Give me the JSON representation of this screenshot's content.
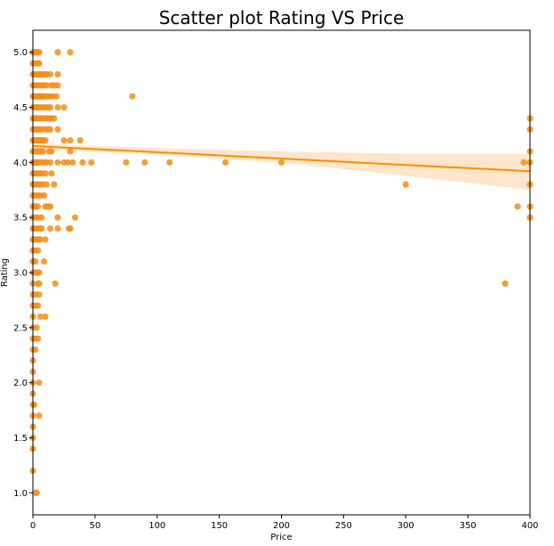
{
  "chart_data": {
    "type": "scatter",
    "title": "Scatter plot Rating VS Price",
    "xlabel": "Price",
    "ylabel": "Rating",
    "xlim": [
      0,
      400
    ],
    "ylim": [
      0.8,
      5.2
    ],
    "x_ticks": [
      0,
      50,
      100,
      150,
      200,
      250,
      300,
      350,
      400
    ],
    "y_ticks": [
      1.0,
      1.5,
      2.0,
      2.5,
      3.0,
      3.5,
      4.0,
      4.5,
      5.0
    ],
    "grid": false,
    "colors": {
      "points": "#f28e1c",
      "regression_line": "#ff8c00",
      "confidence_band": "#fde6cc"
    },
    "regression_line": {
      "x": [
        0,
        400
      ],
      "y": [
        4.15,
        3.92
      ]
    },
    "confidence_band": {
      "x": [
        0,
        50,
        100,
        200,
        300,
        400
      ],
      "lower": [
        4.12,
        4.1,
        4.07,
        4.0,
        3.88,
        3.75
      ],
      "upper": [
        4.17,
        4.15,
        4.13,
        4.1,
        4.08,
        4.08
      ]
    },
    "points": [
      [
        0,
        5.0
      ],
      [
        1,
        5.0
      ],
      [
        2,
        5.0
      ],
      [
        3,
        5.0
      ],
      [
        4,
        5.0
      ],
      [
        5,
        5.0
      ],
      [
        20,
        5.0
      ],
      [
        30,
        5.0
      ],
      [
        0,
        4.9
      ],
      [
        2,
        4.9
      ],
      [
        4,
        4.9
      ],
      [
        5,
        4.9
      ],
      [
        0,
        4.8
      ],
      [
        1,
        4.8
      ],
      [
        2,
        4.8
      ],
      [
        3,
        4.8
      ],
      [
        4,
        4.8
      ],
      [
        5,
        4.8
      ],
      [
        6,
        4.8
      ],
      [
        7,
        4.8
      ],
      [
        8,
        4.8
      ],
      [
        10,
        4.8
      ],
      [
        11,
        4.8
      ],
      [
        14,
        4.8
      ],
      [
        20,
        4.8
      ],
      [
        0,
        4.7
      ],
      [
        2,
        4.7
      ],
      [
        3,
        4.7
      ],
      [
        5,
        4.7
      ],
      [
        7,
        4.7
      ],
      [
        9,
        4.7
      ],
      [
        11,
        4.7
      ],
      [
        15,
        4.7
      ],
      [
        17,
        4.7
      ],
      [
        20,
        4.7
      ],
      [
        0,
        4.6
      ],
      [
        1,
        4.6
      ],
      [
        2,
        4.6
      ],
      [
        3,
        4.6
      ],
      [
        4,
        4.6
      ],
      [
        5,
        4.6
      ],
      [
        6,
        4.6
      ],
      [
        7,
        4.6
      ],
      [
        8,
        4.6
      ],
      [
        10,
        4.6
      ],
      [
        12,
        4.6
      ],
      [
        14,
        4.6
      ],
      [
        16,
        4.6
      ],
      [
        19,
        4.6
      ],
      [
        80,
        4.6
      ],
      [
        0,
        4.5
      ],
      [
        2,
        4.5
      ],
      [
        3,
        4.5
      ],
      [
        4,
        4.5
      ],
      [
        6,
        4.5
      ],
      [
        8,
        4.5
      ],
      [
        10,
        4.5
      ],
      [
        12,
        4.5
      ],
      [
        14,
        4.5
      ],
      [
        20,
        4.5
      ],
      [
        25,
        4.5
      ],
      [
        0,
        4.4
      ],
      [
        1,
        4.4
      ],
      [
        2,
        4.4
      ],
      [
        3,
        4.4
      ],
      [
        4,
        4.4
      ],
      [
        5,
        4.4
      ],
      [
        6,
        4.4
      ],
      [
        7,
        4.4
      ],
      [
        9,
        4.4
      ],
      [
        11,
        4.4
      ],
      [
        13,
        4.4
      ],
      [
        15,
        4.4
      ],
      [
        17,
        4.4
      ],
      [
        400,
        4.4
      ],
      [
        0,
        4.3
      ],
      [
        2,
        4.3
      ],
      [
        3,
        4.3
      ],
      [
        4,
        4.3
      ],
      [
        5,
        4.3
      ],
      [
        7,
        4.3
      ],
      [
        10,
        4.3
      ],
      [
        12,
        4.3
      ],
      [
        14,
        4.3
      ],
      [
        20,
        4.3
      ],
      [
        400,
        4.3
      ],
      [
        0,
        4.2
      ],
      [
        1,
        4.2
      ],
      [
        2,
        4.2
      ],
      [
        3,
        4.2
      ],
      [
        4,
        4.2
      ],
      [
        5,
        4.2
      ],
      [
        6,
        4.2
      ],
      [
        7,
        4.2
      ],
      [
        8,
        4.2
      ],
      [
        10,
        4.2
      ],
      [
        25,
        4.2
      ],
      [
        30,
        4.2
      ],
      [
        38,
        4.2
      ],
      [
        0,
        4.1
      ],
      [
        2,
        4.1
      ],
      [
        4,
        4.1
      ],
      [
        6,
        4.1
      ],
      [
        8,
        4.1
      ],
      [
        13,
        4.1
      ],
      [
        15,
        4.1
      ],
      [
        30,
        4.1
      ],
      [
        400,
        4.1
      ],
      [
        0,
        4.0
      ],
      [
        1,
        4.0
      ],
      [
        2,
        4.0
      ],
      [
        3,
        4.0
      ],
      [
        4,
        4.0
      ],
      [
        5,
        4.0
      ],
      [
        7,
        4.0
      ],
      [
        9,
        4.0
      ],
      [
        11,
        4.0
      ],
      [
        14,
        4.0
      ],
      [
        20,
        4.0
      ],
      [
        25,
        4.0
      ],
      [
        28,
        4.0
      ],
      [
        32,
        4.0
      ],
      [
        40,
        4.0
      ],
      [
        47,
        4.0
      ],
      [
        75,
        4.0
      ],
      [
        90,
        4.0
      ],
      [
        110,
        4.0
      ],
      [
        155,
        4.0
      ],
      [
        200,
        4.0
      ],
      [
        395,
        4.0
      ],
      [
        400,
        4.0
      ],
      [
        0,
        3.9
      ],
      [
        2,
        3.9
      ],
      [
        3,
        3.9
      ],
      [
        5,
        3.9
      ],
      [
        7,
        3.9
      ],
      [
        10,
        3.9
      ],
      [
        15,
        3.9
      ],
      [
        0,
        3.8
      ],
      [
        1,
        3.8
      ],
      [
        3,
        3.8
      ],
      [
        4,
        3.8
      ],
      [
        6,
        3.8
      ],
      [
        8,
        3.8
      ],
      [
        11,
        3.8
      ],
      [
        17,
        3.8
      ],
      [
        300,
        3.8
      ],
      [
        400,
        3.8
      ],
      [
        0,
        3.7
      ],
      [
        2,
        3.7
      ],
      [
        4,
        3.7
      ],
      [
        6,
        3.7
      ],
      [
        9,
        3.7
      ],
      [
        0,
        3.6
      ],
      [
        1,
        3.6
      ],
      [
        2,
        3.6
      ],
      [
        4,
        3.6
      ],
      [
        10,
        3.6
      ],
      [
        12,
        3.6
      ],
      [
        14,
        3.6
      ],
      [
        390,
        3.6
      ],
      [
        400,
        3.6
      ],
      [
        0,
        3.5
      ],
      [
        2,
        3.5
      ],
      [
        4,
        3.5
      ],
      [
        7,
        3.5
      ],
      [
        20,
        3.5
      ],
      [
        34,
        3.5
      ],
      [
        400,
        3.5
      ],
      [
        0,
        3.4
      ],
      [
        1,
        3.4
      ],
      [
        3,
        3.4
      ],
      [
        5,
        3.4
      ],
      [
        7,
        3.4
      ],
      [
        14,
        3.4
      ],
      [
        20,
        3.4
      ],
      [
        29,
        3.4
      ],
      [
        30,
        3.4
      ],
      [
        0,
        3.3
      ],
      [
        1,
        3.3
      ],
      [
        2,
        3.3
      ],
      [
        4,
        3.3
      ],
      [
        6,
        3.3
      ],
      [
        10,
        3.3
      ],
      [
        0,
        3.2
      ],
      [
        2,
        3.2
      ],
      [
        4,
        3.2
      ],
      [
        0,
        3.1
      ],
      [
        2,
        3.1
      ],
      [
        9,
        3.1
      ],
      [
        0,
        3.0
      ],
      [
        2,
        3.0
      ],
      [
        4,
        3.0
      ],
      [
        5,
        3.0
      ],
      [
        0,
        2.9
      ],
      [
        4,
        2.9
      ],
      [
        5,
        2.9
      ],
      [
        18,
        2.9
      ],
      [
        380,
        2.9
      ],
      [
        0,
        2.8
      ],
      [
        2,
        2.8
      ],
      [
        5,
        2.8
      ],
      [
        0,
        2.7
      ],
      [
        2,
        2.7
      ],
      [
        4,
        2.7
      ],
      [
        0,
        2.6
      ],
      [
        6,
        2.6
      ],
      [
        10,
        2.6
      ],
      [
        0,
        2.5
      ],
      [
        3,
        2.5
      ],
      [
        0,
        2.4
      ],
      [
        2,
        2.4
      ],
      [
        4,
        2.4
      ],
      [
        0,
        2.3
      ],
      [
        2,
        2.3
      ],
      [
        0,
        2.2
      ],
      [
        0,
        2.1
      ],
      [
        0,
        2.0
      ],
      [
        5,
        2.0
      ],
      [
        0,
        1.9
      ],
      [
        0,
        1.8
      ],
      [
        1,
        1.8
      ],
      [
        0,
        1.7
      ],
      [
        5,
        1.7
      ],
      [
        0,
        1.6
      ],
      [
        0,
        1.5
      ],
      [
        0,
        1.4
      ],
      [
        0,
        1.2
      ],
      [
        2,
        1.0
      ],
      [
        3,
        1.0
      ]
    ]
  }
}
